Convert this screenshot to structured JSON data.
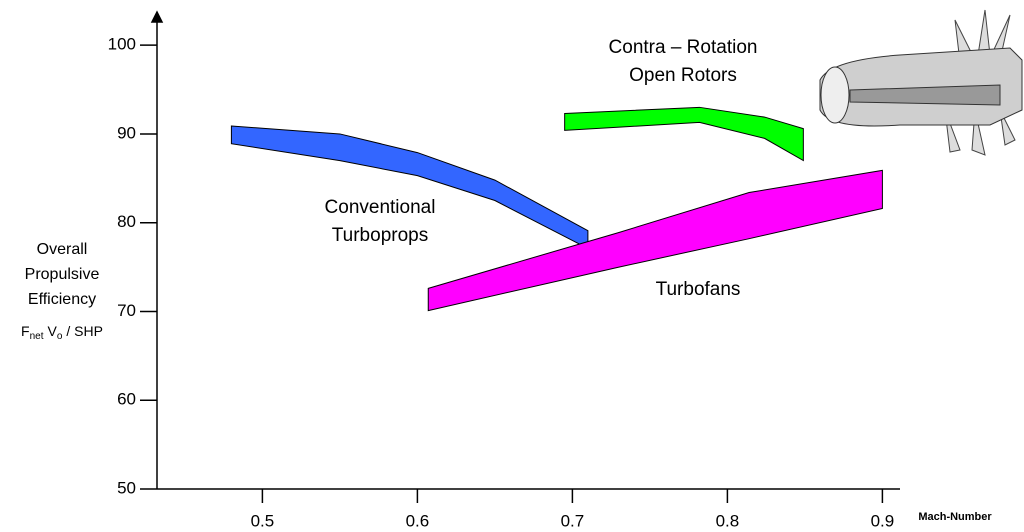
{
  "chart_data": {
    "type": "band",
    "ylabel": [
      "Overall",
      "Propulsive",
      "Efficiency"
    ],
    "ylabel_unit": [
      "F",
      "net",
      "V",
      "o",
      "/ SHP"
    ],
    "xlabel": "Mach-Number",
    "xlim": [
      0.432,
      0.912
    ],
    "ylim": [
      50,
      103.4
    ],
    "xticks": [
      0.5,
      0.6,
      0.7,
      0.8,
      0.9
    ],
    "yticks": [
      50,
      60,
      70,
      80,
      90,
      100
    ],
    "series": [
      {
        "label": [
          "Conventional",
          "Turboprops"
        ],
        "color": "#3366ff",
        "x": [
          0.48,
          0.55,
          0.6,
          0.65,
          0.71
        ],
        "upper": [
          90.9,
          90.0,
          87.9,
          84.8,
          79.1
        ],
        "lower": [
          88.9,
          87.0,
          85.3,
          82.5,
          77.1
        ]
      },
      {
        "label": [
          "Turbofans"
        ],
        "color": "#ff00ff",
        "x": [
          0.607,
          0.73,
          0.814,
          0.9
        ],
        "upper": [
          72.6,
          78.9,
          83.4,
          85.9
        ],
        "lower": [
          70.1,
          75.0,
          78.2,
          81.6
        ]
      },
      {
        "label": [
          "Contra – Rotation",
          "Open Rotors"
        ],
        "color": "#00ff00",
        "x": [
          0.695,
          0.782,
          0.824,
          0.849
        ],
        "upper": [
          92.3,
          93.0,
          91.9,
          90.6
        ],
        "lower": [
          90.4,
          91.3,
          89.5,
          87.0
        ]
      }
    ]
  }
}
